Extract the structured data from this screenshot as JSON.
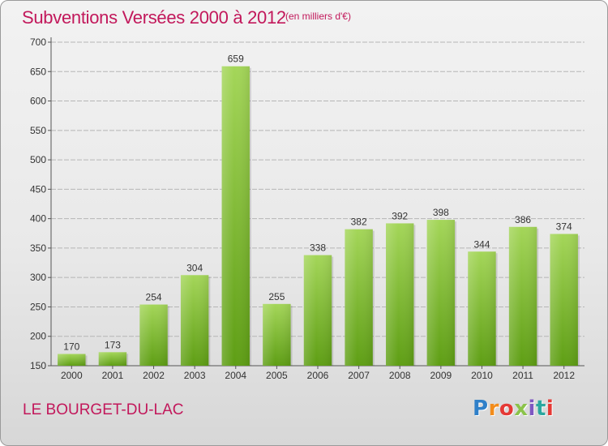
{
  "title": "Subventions Versées 2000 à 2012",
  "unit_note": "(en milliers d'€)",
  "city": "LE BOURGET-DU-LAC",
  "logo": "Proxiti",
  "colors": {
    "title": "#c2185b",
    "bar_light": "#9ed14f",
    "bar_dark": "#5e9e14",
    "grid": "#b8b8b8"
  },
  "chart_data": {
    "type": "bar",
    "title": "Subventions Versées 2000 à 2012",
    "subtitle": "(en milliers d'€)",
    "xlabel": "",
    "ylabel": "",
    "categories": [
      "2000",
      "2001",
      "2002",
      "2003",
      "2004",
      "2005",
      "2006",
      "2007",
      "2008",
      "2009",
      "2010",
      "2011",
      "2012"
    ],
    "values": [
      170,
      173,
      254,
      304,
      659,
      255,
      338,
      382,
      392,
      398,
      344,
      386,
      374
    ],
    "ylim": [
      150,
      700
    ],
    "yticks": [
      150,
      200,
      250,
      300,
      350,
      400,
      450,
      500,
      550,
      600,
      650,
      700
    ],
    "grid": true,
    "data_labels": true
  }
}
